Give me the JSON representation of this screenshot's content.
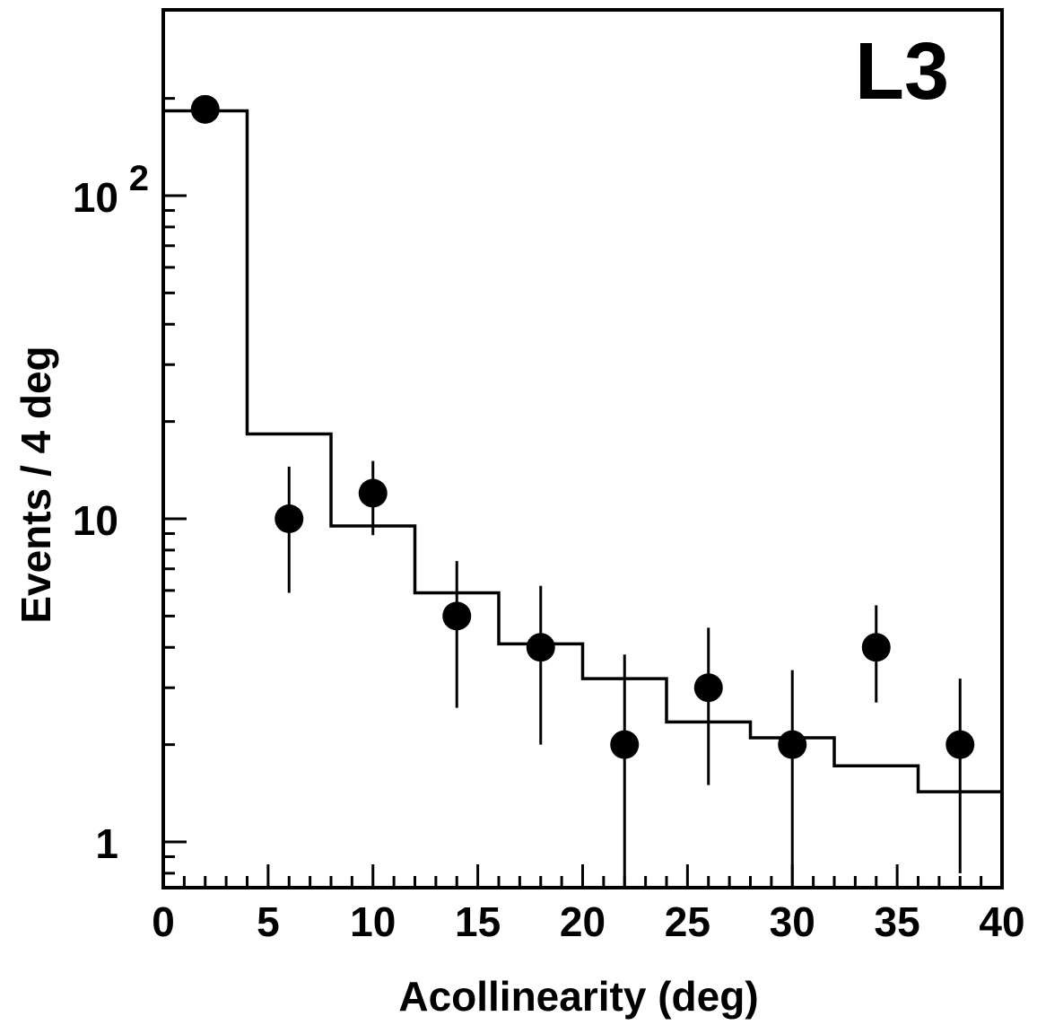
{
  "chart_data": {
    "type": "scatter",
    "experiment_label": "L3",
    "xlabel": "Acollinearity (deg)",
    "ylabel": "Events / 4 deg",
    "xlim": [
      0,
      40
    ],
    "ylim": [
      0.78,
      260
    ],
    "y_scale": "log",
    "x_ticks": [
      "0",
      "5",
      "10",
      "15",
      "20",
      "25",
      "30",
      "35",
      "40"
    ],
    "y_ticks": [
      {
        "value": 1,
        "label": "1",
        "exp": ""
      },
      {
        "value": 10,
        "label": "10",
        "exp": ""
      },
      {
        "value": 100,
        "label": "10",
        "exp": "2"
      }
    ],
    "series": [
      {
        "kind": "data-points",
        "x": [
          2,
          6,
          10,
          14,
          18,
          22,
          26,
          30,
          34,
          38
        ],
        "y": [
          185,
          10,
          12,
          5,
          4,
          2,
          3,
          2,
          4,
          2
        ],
        "err_low": [
          0,
          4.1,
          3.1,
          2.4,
          2.0,
          2.0,
          1.5,
          2.0,
          1.3,
          1.2
        ],
        "err_high": [
          0,
          4.5,
          3.1,
          2.4,
          2.2,
          1.8,
          1.6,
          1.4,
          1.4,
          1.2
        ]
      },
      {
        "kind": "histogram",
        "edges": [
          0,
          4,
          8,
          12,
          16,
          20,
          24,
          28,
          32,
          36,
          40
        ],
        "values": [
          183,
          18.3,
          9.5,
          5.9,
          4.1,
          3.2,
          2.35,
          2.1,
          1.72,
          1.43
        ]
      }
    ],
    "grid": false,
    "legend": "none"
  }
}
